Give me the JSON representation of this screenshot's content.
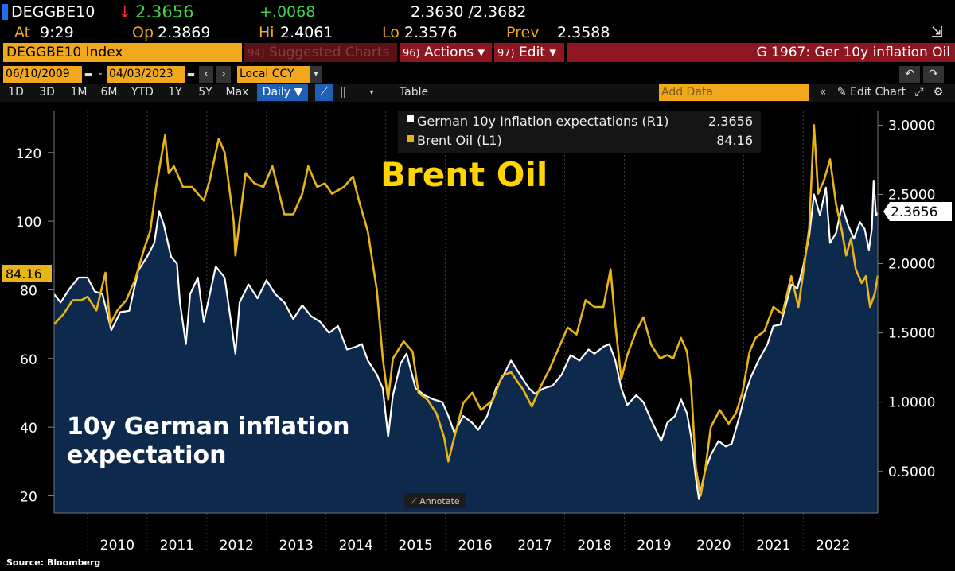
{
  "quote": {
    "ticker": "DEGGBE10",
    "arrow": "↓",
    "last": "2.3656",
    "change": "+.0068",
    "bid_ask": "2.3630 /2.3682",
    "at_label": "At",
    "at_value": "9:29",
    "open_label": "Op",
    "open_value": "2.3869",
    "high_label": "Hi",
    "high_value": "2.4061",
    "low_label": "Lo",
    "low_value": "2.3576",
    "prev_label": "Prev",
    "prev_value": "2.3588"
  },
  "toolbar": {
    "index_field": "DEGGBE10 Index",
    "suggested_num": "94)",
    "suggested": "Suggested Charts",
    "actions_num": "96)",
    "actions": "Actions ▾",
    "edit_num": "97)",
    "edit": "Edit ▾",
    "chart_title": "G 1967: Ger 10y inflation Oil"
  },
  "range": {
    "start": "06/10/2009",
    "end": "04/03/2023",
    "currency": "Local CCY",
    "add_data": "Add Data",
    "edit_chart": "Edit Chart"
  },
  "periods": [
    "1D",
    "3D",
    "1M",
    "6M",
    "YTD",
    "1Y",
    "5Y",
    "Max"
  ],
  "frequency": "Daily ▼",
  "table_label": "Table",
  "annotate": "Annotate",
  "source": "Source: Bloomberg",
  "colors": {
    "oil": "#e8b417",
    "inflation": "#ffffff",
    "area": "#0d2a4d",
    "accent": "#f2a81d",
    "redbar": "#8e1620"
  },
  "chart_data": {
    "type": "line",
    "legend": [
      {
        "name": "German 10y Inflation expectations (R1)",
        "value": "2.3656"
      },
      {
        "name": "Brent Oil (L1)",
        "value": "84.16"
      }
    ],
    "annotations": {
      "oil": "Brent Oil",
      "inflation_line1": "10y German inflation",
      "inflation_line2": "expectation"
    },
    "left_axis": {
      "ticks": [
        "20",
        "40",
        "60",
        "80",
        "100",
        "120"
      ],
      "ylim": [
        15,
        132
      ],
      "last_label": "84.16"
    },
    "right_axis": {
      "ticks": [
        "0.5000",
        "1.0000",
        "1.5000",
        "2.0000",
        "2.5000",
        "3.0000"
      ],
      "ylim": [
        0.2,
        3.1
      ],
      "last_label": "2.3656"
    },
    "x_ticks": [
      "2010",
      "2011",
      "2012",
      "2013",
      "2014",
      "2015",
      "2016",
      "2017",
      "2018",
      "2019",
      "2020",
      "2021",
      "2022"
    ],
    "xlim": [
      2009.44,
      2023.25
    ],
    "series": [
      {
        "name": "Brent Oil (L1)",
        "axis": "left",
        "points": [
          [
            2009.44,
            70
          ],
          [
            2009.6,
            73
          ],
          [
            2009.75,
            77
          ],
          [
            2009.9,
            77
          ],
          [
            2010.0,
            78
          ],
          [
            2010.15,
            74
          ],
          [
            2010.3,
            85
          ],
          [
            2010.38,
            70
          ],
          [
            2010.5,
            74
          ],
          [
            2010.65,
            77
          ],
          [
            2010.8,
            83
          ],
          [
            2010.95,
            92
          ],
          [
            2011.05,
            97
          ],
          [
            2011.15,
            110
          ],
          [
            2011.3,
            125
          ],
          [
            2011.36,
            114
          ],
          [
            2011.45,
            116
          ],
          [
            2011.6,
            110
          ],
          [
            2011.75,
            110
          ],
          [
            2011.85,
            108
          ],
          [
            2011.95,
            106
          ],
          [
            2012.05,
            112
          ],
          [
            2012.2,
            124
          ],
          [
            2012.3,
            120
          ],
          [
            2012.45,
            100
          ],
          [
            2012.48,
            90
          ],
          [
            2012.55,
            100
          ],
          [
            2012.65,
            114
          ],
          [
            2012.8,
            111
          ],
          [
            2012.95,
            110
          ],
          [
            2013.1,
            116
          ],
          [
            2013.3,
            102
          ],
          [
            2013.45,
            102
          ],
          [
            2013.6,
            108
          ],
          [
            2013.7,
            116
          ],
          [
            2013.85,
            110
          ],
          [
            2013.98,
            111
          ],
          [
            2014.1,
            108
          ],
          [
            2014.3,
            110
          ],
          [
            2014.45,
            113
          ],
          [
            2014.55,
            106
          ],
          [
            2014.7,
            97
          ],
          [
            2014.85,
            80
          ],
          [
            2014.95,
            60
          ],
          [
            2015.04,
            48
          ],
          [
            2015.12,
            60
          ],
          [
            2015.3,
            65
          ],
          [
            2015.45,
            62
          ],
          [
            2015.55,
            50
          ],
          [
            2015.7,
            48
          ],
          [
            2015.85,
            44
          ],
          [
            2015.98,
            37
          ],
          [
            2016.05,
            30
          ],
          [
            2016.12,
            35
          ],
          [
            2016.3,
            47
          ],
          [
            2016.45,
            50
          ],
          [
            2016.6,
            45
          ],
          [
            2016.8,
            48
          ],
          [
            2016.95,
            55
          ],
          [
            2017.1,
            56
          ],
          [
            2017.3,
            51
          ],
          [
            2017.45,
            46
          ],
          [
            2017.6,
            52
          ],
          [
            2017.75,
            57
          ],
          [
            2017.9,
            63
          ],
          [
            2018.05,
            69
          ],
          [
            2018.2,
            67
          ],
          [
            2018.35,
            77
          ],
          [
            2018.5,
            75
          ],
          [
            2018.65,
            75
          ],
          [
            2018.77,
            86
          ],
          [
            2018.85,
            70
          ],
          [
            2018.95,
            54
          ],
          [
            2019.05,
            61
          ],
          [
            2019.2,
            68
          ],
          [
            2019.32,
            72
          ],
          [
            2019.45,
            64
          ],
          [
            2019.6,
            60
          ],
          [
            2019.72,
            61
          ],
          [
            2019.82,
            60
          ],
          [
            2019.95,
            66
          ],
          [
            2020.05,
            62
          ],
          [
            2020.12,
            52
          ],
          [
            2020.2,
            28
          ],
          [
            2020.28,
            20
          ],
          [
            2020.36,
            28
          ],
          [
            2020.45,
            40
          ],
          [
            2020.6,
            45
          ],
          [
            2020.75,
            41
          ],
          [
            2020.87,
            44
          ],
          [
            2020.98,
            50
          ],
          [
            2021.1,
            62
          ],
          [
            2021.2,
            66
          ],
          [
            2021.35,
            68
          ],
          [
            2021.5,
            75
          ],
          [
            2021.65,
            73
          ],
          [
            2021.8,
            84
          ],
          [
            2021.92,
            75
          ],
          [
            2022.0,
            85
          ],
          [
            2022.1,
            98
          ],
          [
            2022.18,
            128
          ],
          [
            2022.25,
            108
          ],
          [
            2022.35,
            112
          ],
          [
            2022.45,
            118
          ],
          [
            2022.55,
            105
          ],
          [
            2022.65,
            97
          ],
          [
            2022.72,
            90
          ],
          [
            2022.8,
            95
          ],
          [
            2022.88,
            86
          ],
          [
            2022.98,
            82
          ],
          [
            2023.05,
            84
          ],
          [
            2023.12,
            75
          ],
          [
            2023.2,
            79
          ],
          [
            2023.25,
            84.16
          ]
        ]
      },
      {
        "name": "German 10y Inflation expectations (R1)",
        "axis": "right",
        "points": [
          [
            2009.44,
            1.78
          ],
          [
            2009.55,
            1.72
          ],
          [
            2009.7,
            1.82
          ],
          [
            2009.85,
            1.9
          ],
          [
            2010.0,
            1.9
          ],
          [
            2010.12,
            1.8
          ],
          [
            2010.25,
            1.78
          ],
          [
            2010.4,
            1.52
          ],
          [
            2010.55,
            1.65
          ],
          [
            2010.7,
            1.66
          ],
          [
            2010.85,
            1.95
          ],
          [
            2011.0,
            2.05
          ],
          [
            2011.12,
            2.15
          ],
          [
            2011.2,
            2.38
          ],
          [
            2011.28,
            2.28
          ],
          [
            2011.4,
            2.05
          ],
          [
            2011.5,
            2.0
          ],
          [
            2011.55,
            1.72
          ],
          [
            2011.65,
            1.42
          ],
          [
            2011.72,
            1.78
          ],
          [
            2011.85,
            1.9
          ],
          [
            2011.95,
            1.58
          ],
          [
            2012.05,
            1.78
          ],
          [
            2012.15,
            1.98
          ],
          [
            2012.3,
            1.9
          ],
          [
            2012.4,
            1.6
          ],
          [
            2012.48,
            1.35
          ],
          [
            2012.55,
            1.72
          ],
          [
            2012.7,
            1.85
          ],
          [
            2012.85,
            1.75
          ],
          [
            2013.0,
            1.88
          ],
          [
            2013.15,
            1.78
          ],
          [
            2013.3,
            1.72
          ],
          [
            2013.45,
            1.6
          ],
          [
            2013.6,
            1.7
          ],
          [
            2013.75,
            1.62
          ],
          [
            2013.9,
            1.58
          ],
          [
            2014.05,
            1.5
          ],
          [
            2014.2,
            1.55
          ],
          [
            2014.35,
            1.38
          ],
          [
            2014.5,
            1.4
          ],
          [
            2014.6,
            1.42
          ],
          [
            2014.7,
            1.3
          ],
          [
            2014.85,
            1.2
          ],
          [
            2014.95,
            1.1
          ],
          [
            2015.04,
            0.75
          ],
          [
            2015.12,
            1.05
          ],
          [
            2015.25,
            1.28
          ],
          [
            2015.35,
            1.35
          ],
          [
            2015.5,
            1.1
          ],
          [
            2015.65,
            1.05
          ],
          [
            2015.8,
            1.02
          ],
          [
            2015.95,
            1.0
          ],
          [
            2016.05,
            0.9
          ],
          [
            2016.15,
            0.78
          ],
          [
            2016.3,
            0.9
          ],
          [
            2016.45,
            0.85
          ],
          [
            2016.55,
            0.8
          ],
          [
            2016.7,
            0.9
          ],
          [
            2016.85,
            1.1
          ],
          [
            2016.98,
            1.2
          ],
          [
            2017.1,
            1.3
          ],
          [
            2017.25,
            1.2
          ],
          [
            2017.4,
            1.1
          ],
          [
            2017.5,
            1.06
          ],
          [
            2017.65,
            1.1
          ],
          [
            2017.8,
            1.12
          ],
          [
            2017.95,
            1.2
          ],
          [
            2018.1,
            1.34
          ],
          [
            2018.25,
            1.3
          ],
          [
            2018.4,
            1.38
          ],
          [
            2018.5,
            1.35
          ],
          [
            2018.65,
            1.4
          ],
          [
            2018.75,
            1.42
          ],
          [
            2018.85,
            1.3
          ],
          [
            2018.95,
            1.1
          ],
          [
            2019.05,
            0.98
          ],
          [
            2019.2,
            1.05
          ],
          [
            2019.32,
            1.0
          ],
          [
            2019.42,
            0.9
          ],
          [
            2019.55,
            0.78
          ],
          [
            2019.62,
            0.72
          ],
          [
            2019.72,
            0.85
          ],
          [
            2019.85,
            0.9
          ],
          [
            2019.95,
            1.02
          ],
          [
            2020.05,
            0.92
          ],
          [
            2020.12,
            0.75
          ],
          [
            2020.2,
            0.45
          ],
          [
            2020.25,
            0.3
          ],
          [
            2020.35,
            0.5
          ],
          [
            2020.45,
            0.62
          ],
          [
            2020.58,
            0.72
          ],
          [
            2020.7,
            0.68
          ],
          [
            2020.8,
            0.7
          ],
          [
            2020.92,
            0.88
          ],
          [
            2021.02,
            1.05
          ],
          [
            2021.12,
            1.18
          ],
          [
            2021.25,
            1.3
          ],
          [
            2021.4,
            1.42
          ],
          [
            2021.5,
            1.55
          ],
          [
            2021.62,
            1.56
          ],
          [
            2021.72,
            1.72
          ],
          [
            2021.8,
            1.85
          ],
          [
            2021.9,
            1.82
          ],
          [
            2022.0,
            1.98
          ],
          [
            2022.1,
            2.2
          ],
          [
            2022.18,
            2.5
          ],
          [
            2022.28,
            2.35
          ],
          [
            2022.38,
            2.55
          ],
          [
            2022.45,
            2.15
          ],
          [
            2022.55,
            2.22
          ],
          [
            2022.65,
            2.42
          ],
          [
            2022.75,
            2.28
          ],
          [
            2022.85,
            2.18
          ],
          [
            2022.95,
            2.3
          ],
          [
            2023.03,
            2.25
          ],
          [
            2023.1,
            2.1
          ],
          [
            2023.15,
            2.25
          ],
          [
            2023.18,
            2.6
          ],
          [
            2023.22,
            2.35
          ],
          [
            2023.25,
            2.3656
          ]
        ]
      }
    ]
  }
}
